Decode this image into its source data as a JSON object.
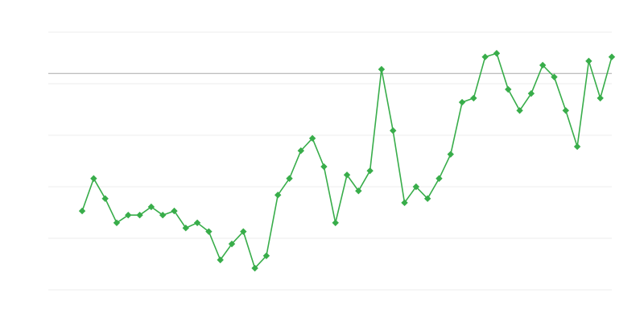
{
  "chart_data": {
    "type": "line",
    "x": [
      0,
      1,
      2,
      3,
      4,
      5,
      6,
      7,
      8,
      9,
      10,
      11,
      12,
      13,
      14,
      15,
      16,
      17,
      18,
      19,
      20,
      21,
      22,
      23,
      24,
      25,
      26,
      27,
      28,
      29,
      30,
      31,
      32,
      33,
      34,
      35,
      36,
      37,
      38,
      39,
      40,
      41,
      42,
      43,
      44,
      45,
      46
    ],
    "series": [
      {
        "color": "#38ad4a",
        "values": [
          1.53,
          2.16,
          1.77,
          1.3,
          1.45,
          1.45,
          1.61,
          1.45,
          1.53,
          1.2,
          1.3,
          1.13,
          0.58,
          0.89,
          1.13,
          0.42,
          0.66,
          1.84,
          2.16,
          2.7,
          2.94,
          2.39,
          1.3,
          2.23,
          1.92,
          2.31,
          4.28,
          3.09,
          1.69,
          2.0,
          1.77,
          2.16,
          2.63,
          3.64,
          3.72,
          4.52,
          4.59,
          3.89,
          3.48,
          3.81,
          4.36,
          4.13,
          3.48,
          2.78,
          4.44,
          3.72,
          4.52
        ]
      }
    ],
    "xlim": [
      -2.94,
      46
    ],
    "ylim": [
      0,
      5
    ],
    "yticks": [
      0,
      1,
      2,
      3,
      4,
      5
    ],
    "grid": true,
    "reference_line": 4.2,
    "reference_color": "#aaaaaa"
  }
}
